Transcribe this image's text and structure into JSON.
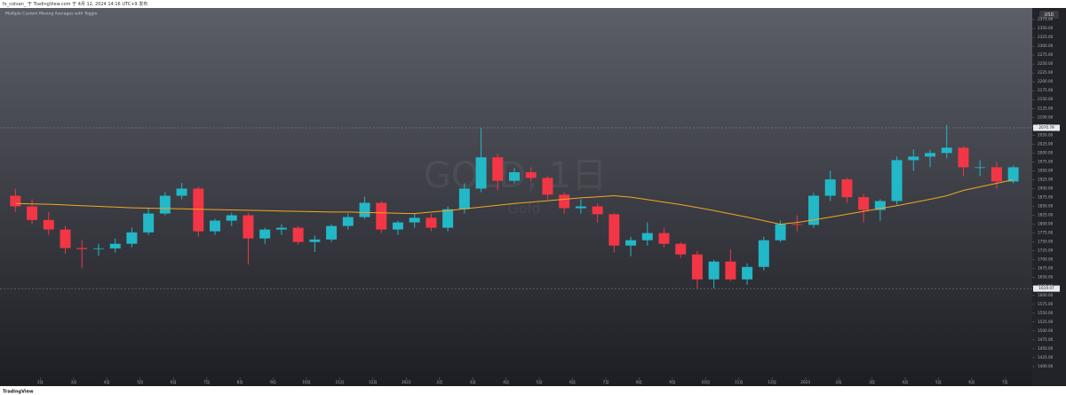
{
  "header": {
    "publisher": "fx_cotsan_ 于 TradingView.com 于 4月 12, 2024 14:16 UTC+9 发布"
  },
  "footer": {
    "brand": "TradingView"
  },
  "chart_data": {
    "type": "candlestick",
    "title": "Multiple Custom Moving Averages with Toggle",
    "watermark": "GOLD, 1日",
    "watermark_sub": "Gold",
    "currency": "USD",
    "up_color": "#22b8c8",
    "down_color": "#f23645",
    "categories": [
      "2月",
      "3月",
      "4月",
      "5月",
      "6月",
      "7月",
      "8月",
      "9月",
      "10月",
      "11月",
      "12月",
      "2022",
      "2月",
      "3月",
      "4月",
      "5月",
      "6月",
      "7月",
      "8月",
      "9月",
      "10月",
      "11月",
      "12月",
      "2023",
      "2月",
      "3月",
      "4月",
      "5月",
      "6月",
      "7月"
    ],
    "open": [
      1880,
      1850,
      1812,
      1785,
      1733,
      1730,
      1732,
      1745,
      1777,
      1830,
      1880,
      1900,
      1780,
      1810,
      1825,
      1760,
      1785,
      1790,
      1750,
      1757,
      1795,
      1820,
      1860,
      1785,
      1805,
      1818,
      1790,
      1842,
      1900,
      1988,
      1922,
      1946,
      1930,
      1883,
      1845,
      1850,
      1828,
      1740,
      1755,
      1775,
      1745,
      1715,
      1645,
      1695,
      1645,
      1680,
      1755,
      1800,
      1798,
      1880,
      1926,
      1876,
      1840,
      1865,
      1980,
      1990,
      2000,
      2015,
      1960,
      1960,
      1920
    ],
    "high": [
      1900,
      1870,
      1835,
      1795,
      1755,
      1745,
      1760,
      1790,
      1845,
      1890,
      1916,
      1905,
      1815,
      1832,
      1832,
      1790,
      1800,
      1795,
      1768,
      1800,
      1830,
      1877,
      1865,
      1810,
      1830,
      1830,
      1850,
      1915,
      2070,
      1998,
      1958,
      1960,
      1935,
      1890,
      1870,
      1858,
      1830,
      1765,
      1805,
      1790,
      1750,
      1725,
      1700,
      1730,
      1690,
      1765,
      1810,
      1825,
      1888,
      1950,
      1930,
      1885,
      1870,
      1990,
      2010,
      2009,
      2079,
      2020,
      1980,
      1975,
      1965
    ],
    "low": [
      1835,
      1800,
      1770,
      1717,
      1677,
      1712,
      1720,
      1735,
      1770,
      1825,
      1870,
      1765,
      1770,
      1795,
      1687,
      1745,
      1770,
      1742,
      1722,
      1750,
      1785,
      1815,
      1775,
      1770,
      1790,
      1780,
      1780,
      1830,
      1890,
      1895,
      1915,
      1920,
      1870,
      1830,
      1830,
      1805,
      1720,
      1710,
      1740,
      1735,
      1705,
      1618,
      1620,
      1640,
      1630,
      1670,
      1750,
      1780,
      1790,
      1865,
      1860,
      1805,
      1810,
      1855,
      1950,
      1960,
      1985,
      1935,
      1935,
      1900,
      1915
    ],
    "close": [
      1850,
      1812,
      1785,
      1733,
      1730,
      1732,
      1745,
      1777,
      1830,
      1880,
      1900,
      1780,
      1810,
      1825,
      1760,
      1785,
      1790,
      1750,
      1757,
      1795,
      1820,
      1860,
      1785,
      1805,
      1818,
      1790,
      1842,
      1900,
      1988,
      1922,
      1946,
      1930,
      1883,
      1845,
      1850,
      1828,
      1740,
      1755,
      1775,
      1745,
      1715,
      1645,
      1695,
      1645,
      1680,
      1755,
      1800,
      1798,
      1880,
      1926,
      1876,
      1840,
      1865,
      1980,
      1990,
      2000,
      2015,
      1960,
      1960,
      1920,
      1960
    ],
    "moving_averages": [
      {
        "color": "#f5a623",
        "values": [
          1858,
          1857,
          1856,
          1854,
          1852,
          1850,
          1848,
          1846,
          1845,
          1844,
          1843,
          1842,
          1841,
          1840,
          1839,
          1838,
          1837,
          1836,
          1835,
          1834,
          1834,
          1833,
          1832,
          1831,
          1830,
          1834,
          1838,
          1843,
          1848,
          1853,
          1858,
          1862,
          1866,
          1870,
          1874,
          1877,
          1880,
          1876,
          1869,
          1862,
          1855,
          1847,
          1838,
          1829,
          1820,
          1810,
          1800,
          1805,
          1812,
          1820,
          1828,
          1836,
          1844,
          1852,
          1861,
          1870,
          1880,
          1895,
          1905,
          1915,
          1925
        ]
      }
    ],
    "price_lines": [
      2070.79,
      1619.07
    ],
    "ylim": [
      1370,
      2400
    ],
    "yticks": [
      {
        "value": 1400,
        "label": "1400.00"
      },
      {
        "value": 1425,
        "label": "1425.00"
      },
      {
        "value": 1450,
        "label": "1450.00"
      },
      {
        "value": 1475,
        "label": "1475.00"
      },
      {
        "value": 1500,
        "label": "1500.00"
      },
      {
        "value": 1525,
        "label": "1525.00"
      },
      {
        "value": 1550,
        "label": "1550.00"
      },
      {
        "value": 1575,
        "label": "1575.00"
      },
      {
        "value": 1600,
        "label": "1600.00"
      },
      {
        "value": 1625,
        "label": "1625.00"
      },
      {
        "value": 1650,
        "label": "1650.00"
      },
      {
        "value": 1675,
        "label": "1675.00"
      },
      {
        "value": 1700,
        "label": "1700.00"
      },
      {
        "value": 1725,
        "label": "1725.00"
      },
      {
        "value": 1750,
        "label": "1750.00"
      },
      {
        "value": 1775,
        "label": "1775.00"
      },
      {
        "value": 1800,
        "label": "1800.00"
      },
      {
        "value": 1825,
        "label": "1825.00"
      },
      {
        "value": 1850,
        "label": "1850.00"
      },
      {
        "value": 1875,
        "label": "1875.00"
      },
      {
        "value": 1900,
        "label": "1900.00"
      },
      {
        "value": 1925,
        "label": "1925.00"
      },
      {
        "value": 1950,
        "label": "1950.00"
      },
      {
        "value": 1975,
        "label": "1975.00"
      },
      {
        "value": 2000,
        "label": "2000.00"
      },
      {
        "value": 2025,
        "label": "2025.00"
      },
      {
        "value": 2050,
        "label": "2050.00"
      },
      {
        "value": 2075,
        "label": "2075.00"
      },
      {
        "value": 2100,
        "label": "2100.00"
      },
      {
        "value": 2125,
        "label": "2125.00"
      },
      {
        "value": 2150,
        "label": "2150.00"
      },
      {
        "value": 2175,
        "label": "2175.00"
      },
      {
        "value": 2200,
        "label": "2200.00"
      },
      {
        "value": 2225,
        "label": "2225.00"
      },
      {
        "value": 2250,
        "label": "2250.00"
      },
      {
        "value": 2275,
        "label": "2275.00"
      },
      {
        "value": 2300,
        "label": "2300.00"
      },
      {
        "value": 2325,
        "label": "2325.00"
      },
      {
        "value": 2350,
        "label": "2350.00"
      },
      {
        "value": 2375,
        "label": "2375.00"
      }
    ]
  }
}
